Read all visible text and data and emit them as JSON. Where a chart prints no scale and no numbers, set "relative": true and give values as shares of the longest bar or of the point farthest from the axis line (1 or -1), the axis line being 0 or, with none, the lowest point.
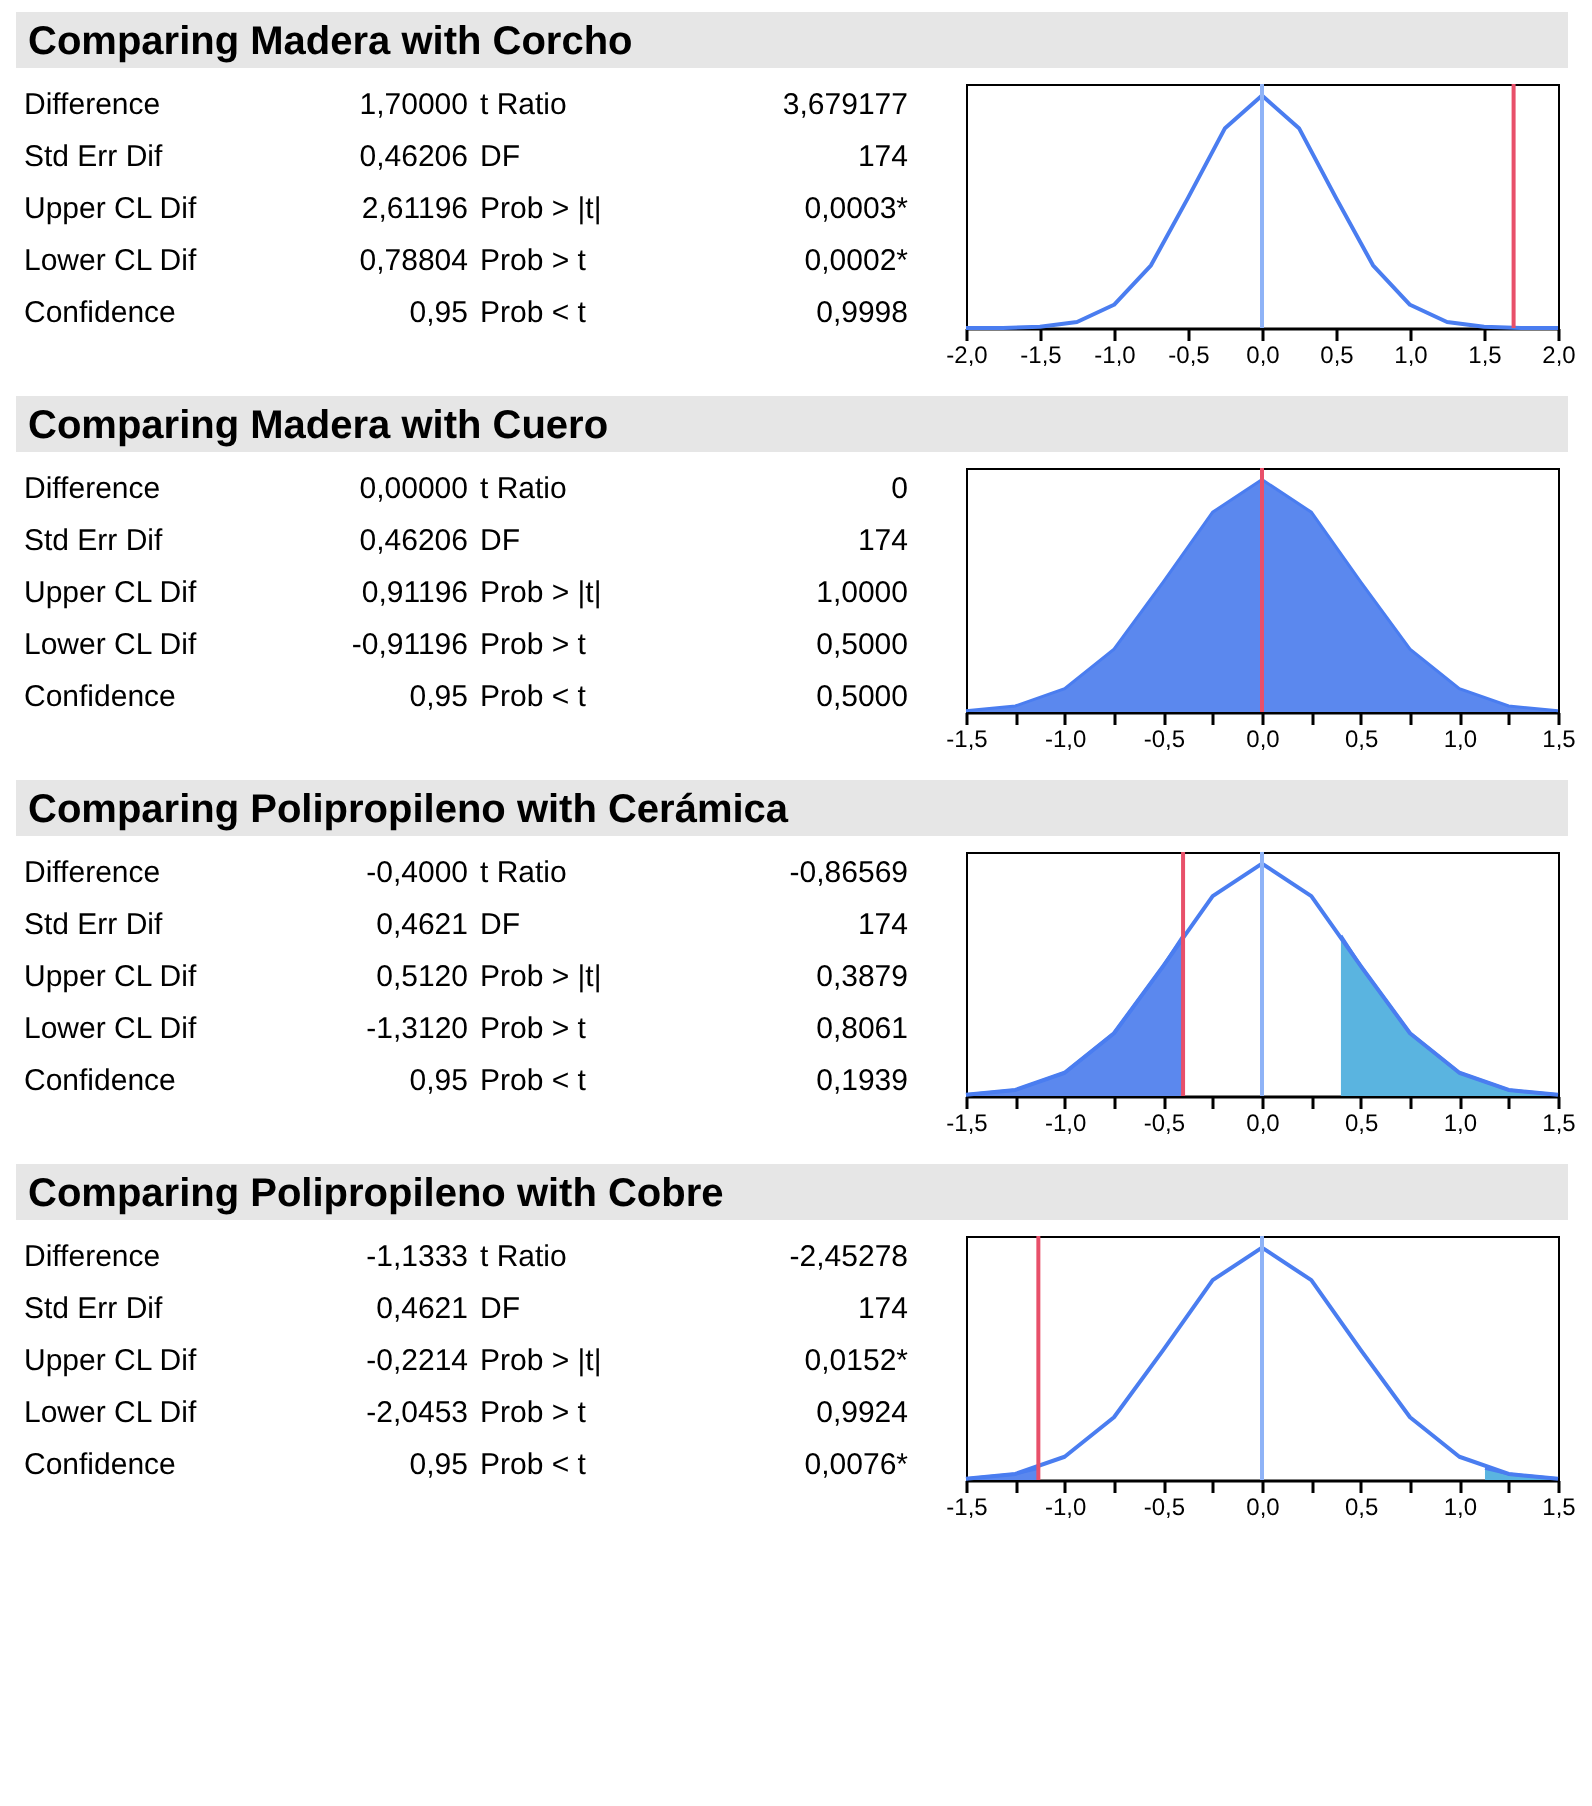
{
  "chart_data": [
    {
      "type": "other",
      "title": "Comparing Madera with Corcho",
      "annotations": [
        "Difference",
        "1,70000",
        "t Ratio",
        "3,679177",
        "Std Err Dif",
        "0,46206",
        "DF",
        "174",
        "Upper CL Dif",
        "2,61196",
        "Prob > |t|",
        "0,0003*",
        "Lower CL Dif",
        "0,78804",
        "Prob > t",
        "0,0002*",
        "Confidence",
        "0,95",
        "Prob < t",
        "0,9998"
      ]
    },
    {
      "type": "line",
      "relative": true,
      "xlim": [
        -2,
        2
      ],
      "xticks": [
        {
          "value": -2,
          "label": "-2,0"
        },
        {
          "value": -1.5,
          "label": "-1,5"
        },
        {
          "value": -1,
          "label": "-1,0"
        },
        {
          "value": -0.5,
          "label": "-0,5"
        },
        {
          "value": 0,
          "label": "0,0"
        },
        {
          "value": 0.5,
          "label": "0,5"
        },
        {
          "value": 1,
          "label": "1,0"
        },
        {
          "value": 1.5,
          "label": "1,5"
        },
        {
          "value": 2,
          "label": "2,0"
        }
      ],
      "tick_labels": "x",
      "series": [
        {
          "type": "line",
          "color": "#4a7df0",
          "x": [
            -2,
            -1.75,
            -1.5,
            -1.25,
            -1,
            -0.75,
            -0.5,
            -0.25,
            0,
            0.25,
            0.5,
            0.75,
            1,
            1.25,
            1.5,
            1.75,
            2
          ],
          "values": [
            0,
            0,
            0.005,
            0.026,
            0.1,
            0.27,
            0.56,
            0.86,
            1,
            0.86,
            0.56,
            0.27,
            0.1,
            0.026,
            0.005,
            0,
            0
          ]
        }
      ],
      "ref_lines": [
        {
          "axis": "x",
          "value": 0,
          "color": "#8fb3f7"
        },
        {
          "axis": "x",
          "value": 1.7,
          "color": "#e8506a"
        }
      ]
    },
    {
      "type": "other",
      "title": "Comparing Madera with Cuero",
      "annotations": [
        "Difference",
        "0,00000",
        "t Ratio",
        "0",
        "Std Err Dif",
        "0,46206",
        "DF",
        "174",
        "Upper CL Dif",
        "0,91196",
        "Prob > |t|",
        "1,0000",
        "Lower CL Dif",
        "-0,91196",
        "Prob > t",
        "0,5000",
        "Confidence",
        "0,95",
        "Prob < t",
        "0,5000"
      ]
    },
    {
      "type": "area",
      "relative": true,
      "xlim": [
        -1.5,
        1.5
      ],
      "xticks": [
        {
          "value": -1.5,
          "label": "-1,5"
        },
        {
          "value": -1.25,
          "label": null
        },
        {
          "value": -1,
          "label": "-1,0"
        },
        {
          "value": -0.75,
          "label": null
        },
        {
          "value": -0.5,
          "label": "-0,5"
        },
        {
          "value": -0.25,
          "label": null
        },
        {
          "value": 0,
          "label": "0,0"
        },
        {
          "value": 0.25,
          "label": null
        },
        {
          "value": 0.5,
          "label": "0,5"
        },
        {
          "value": 0.75,
          "label": null
        },
        {
          "value": 1,
          "label": "1,0"
        },
        {
          "value": 1.25,
          "label": null
        },
        {
          "value": 1.5,
          "label": "1,5"
        }
      ],
      "tick_labels": "x",
      "series": [
        {
          "type": "area",
          "color": "#5b88ee",
          "x": [
            -1.5,
            -1.25,
            -1,
            -0.75,
            -0.5,
            -0.25,
            0,
            0.25,
            0.5,
            0.75,
            1,
            1.25,
            1.5
          ],
          "values": [
            0.005,
            0.026,
            0.1,
            0.27,
            0.56,
            0.86,
            1,
            0.86,
            0.56,
            0.27,
            0.1,
            0.026,
            0.005
          ]
        }
      ],
      "ref_lines": [
        {
          "axis": "x",
          "value": 0,
          "color": "#e8506a"
        }
      ]
    },
    {
      "type": "other",
      "title": "Comparing Polipropileno with Cerámica",
      "annotations": [
        "Difference",
        "-0,4000",
        "t Ratio",
        "-0,86569",
        "Std Err Dif",
        "0,4621",
        "DF",
        "174",
        "Upper CL Dif",
        "0,5120",
        "Prob > |t|",
        "0,3879",
        "Lower CL Dif",
        "-1,3120",
        "Prob > t",
        "0,8061",
        "Confidence",
        "0,95",
        "Prob < t",
        "0,1939"
      ]
    },
    {
      "type": "line",
      "relative": true,
      "xlim": [
        -1.5,
        1.5
      ],
      "xticks": [
        {
          "value": -1.5,
          "label": "-1,5"
        },
        {
          "value": -1.25,
          "label": null
        },
        {
          "value": -1,
          "label": "-1,0"
        },
        {
          "value": -0.75,
          "label": null
        },
        {
          "value": -0.5,
          "label": "-0,5"
        },
        {
          "value": -0.25,
          "label": null
        },
        {
          "value": 0,
          "label": "0,0"
        },
        {
          "value": 0.25,
          "label": null
        },
        {
          "value": 0.5,
          "label": "0,5"
        },
        {
          "value": 0.75,
          "label": null
        },
        {
          "value": 1,
          "label": "1,0"
        },
        {
          "value": 1.25,
          "label": null
        },
        {
          "value": 1.5,
          "label": "1,5"
        }
      ],
      "tick_labels": "x",
      "series": [
        {
          "type": "area",
          "color": "#5b88ee",
          "x": [
            -1.5,
            -1.25,
            -1,
            -0.75,
            -0.5,
            -0.4
          ],
          "values": [
            0.005,
            0.026,
            0.1,
            0.27,
            0.56,
            0.69
          ]
        },
        {
          "type": "area",
          "color": "#5ab4e0",
          "x": [
            0.4,
            0.5,
            0.75,
            1,
            1.25,
            1.5
          ],
          "values": [
            0.69,
            0.56,
            0.27,
            0.1,
            0.026,
            0.005
          ]
        },
        {
          "type": "line",
          "color": "#4a7df0",
          "x": [
            -1.5,
            -1.25,
            -1,
            -0.75,
            -0.5,
            -0.25,
            0,
            0.25,
            0.5,
            0.75,
            1,
            1.25,
            1.5
          ],
          "values": [
            0.005,
            0.026,
            0.1,
            0.27,
            0.56,
            0.86,
            1,
            0.86,
            0.56,
            0.27,
            0.1,
            0.026,
            0.005
          ]
        }
      ],
      "ref_lines": [
        {
          "axis": "x",
          "value": 0,
          "color": "#8fb3f7"
        },
        {
          "axis": "x",
          "value": -0.4,
          "color": "#e8506a"
        }
      ]
    },
    {
      "type": "other",
      "title": "Comparing Polipropileno with Cobre",
      "annotations": [
        "Difference",
        "-1,1333",
        "t Ratio",
        "-2,45278",
        "Std Err Dif",
        "0,4621",
        "DF",
        "174",
        "Upper CL Dif",
        "-0,2214",
        "Prob > |t|",
        "0,0152*",
        "Lower CL Dif",
        "-2,0453",
        "Prob > t",
        "0,9924",
        "Confidence",
        "0,95",
        "Prob < t",
        "0,0076*"
      ]
    },
    {
      "type": "line",
      "relative": true,
      "xlim": [
        -1.5,
        1.5
      ],
      "xticks": [
        {
          "value": -1.5,
          "label": "-1,5"
        },
        {
          "value": -1.25,
          "label": null
        },
        {
          "value": -1,
          "label": "-1,0"
        },
        {
          "value": -0.75,
          "label": null
        },
        {
          "value": -0.5,
          "label": "-0,5"
        },
        {
          "value": -0.25,
          "label": null
        },
        {
          "value": 0,
          "label": "0,0"
        },
        {
          "value": 0.25,
          "label": null
        },
        {
          "value": 0.5,
          "label": "0,5"
        },
        {
          "value": 0.75,
          "label": null
        },
        {
          "value": 1,
          "label": "1,0"
        },
        {
          "value": 1.25,
          "label": null
        },
        {
          "value": 1.5,
          "label": "1,5"
        }
      ],
      "tick_labels": "x",
      "series": [
        {
          "type": "area",
          "color": "#5b88ee",
          "x": [
            -1.5,
            -1.25,
            -1.13
          ],
          "values": [
            0.005,
            0.026,
            0.05
          ]
        },
        {
          "type": "area",
          "color": "#5ab4e0",
          "x": [
            1.13,
            1.25,
            1.5
          ],
          "values": [
            0.05,
            0.026,
            0.005
          ]
        },
        {
          "type": "line",
          "color": "#4a7df0",
          "x": [
            -1.5,
            -1.25,
            -1,
            -0.75,
            -0.5,
            -0.25,
            0,
            0.25,
            0.5,
            0.75,
            1,
            1.25,
            1.5
          ],
          "values": [
            0.005,
            0.026,
            0.1,
            0.27,
            0.56,
            0.86,
            1,
            0.86,
            0.56,
            0.27,
            0.1,
            0.026,
            0.005
          ]
        }
      ],
      "ref_lines": [
        {
          "axis": "x",
          "value": 0,
          "color": "#8fb3f7"
        },
        {
          "axis": "x",
          "value": -1.1333,
          "color": "#e8506a"
        }
      ]
    }
  ]
}
